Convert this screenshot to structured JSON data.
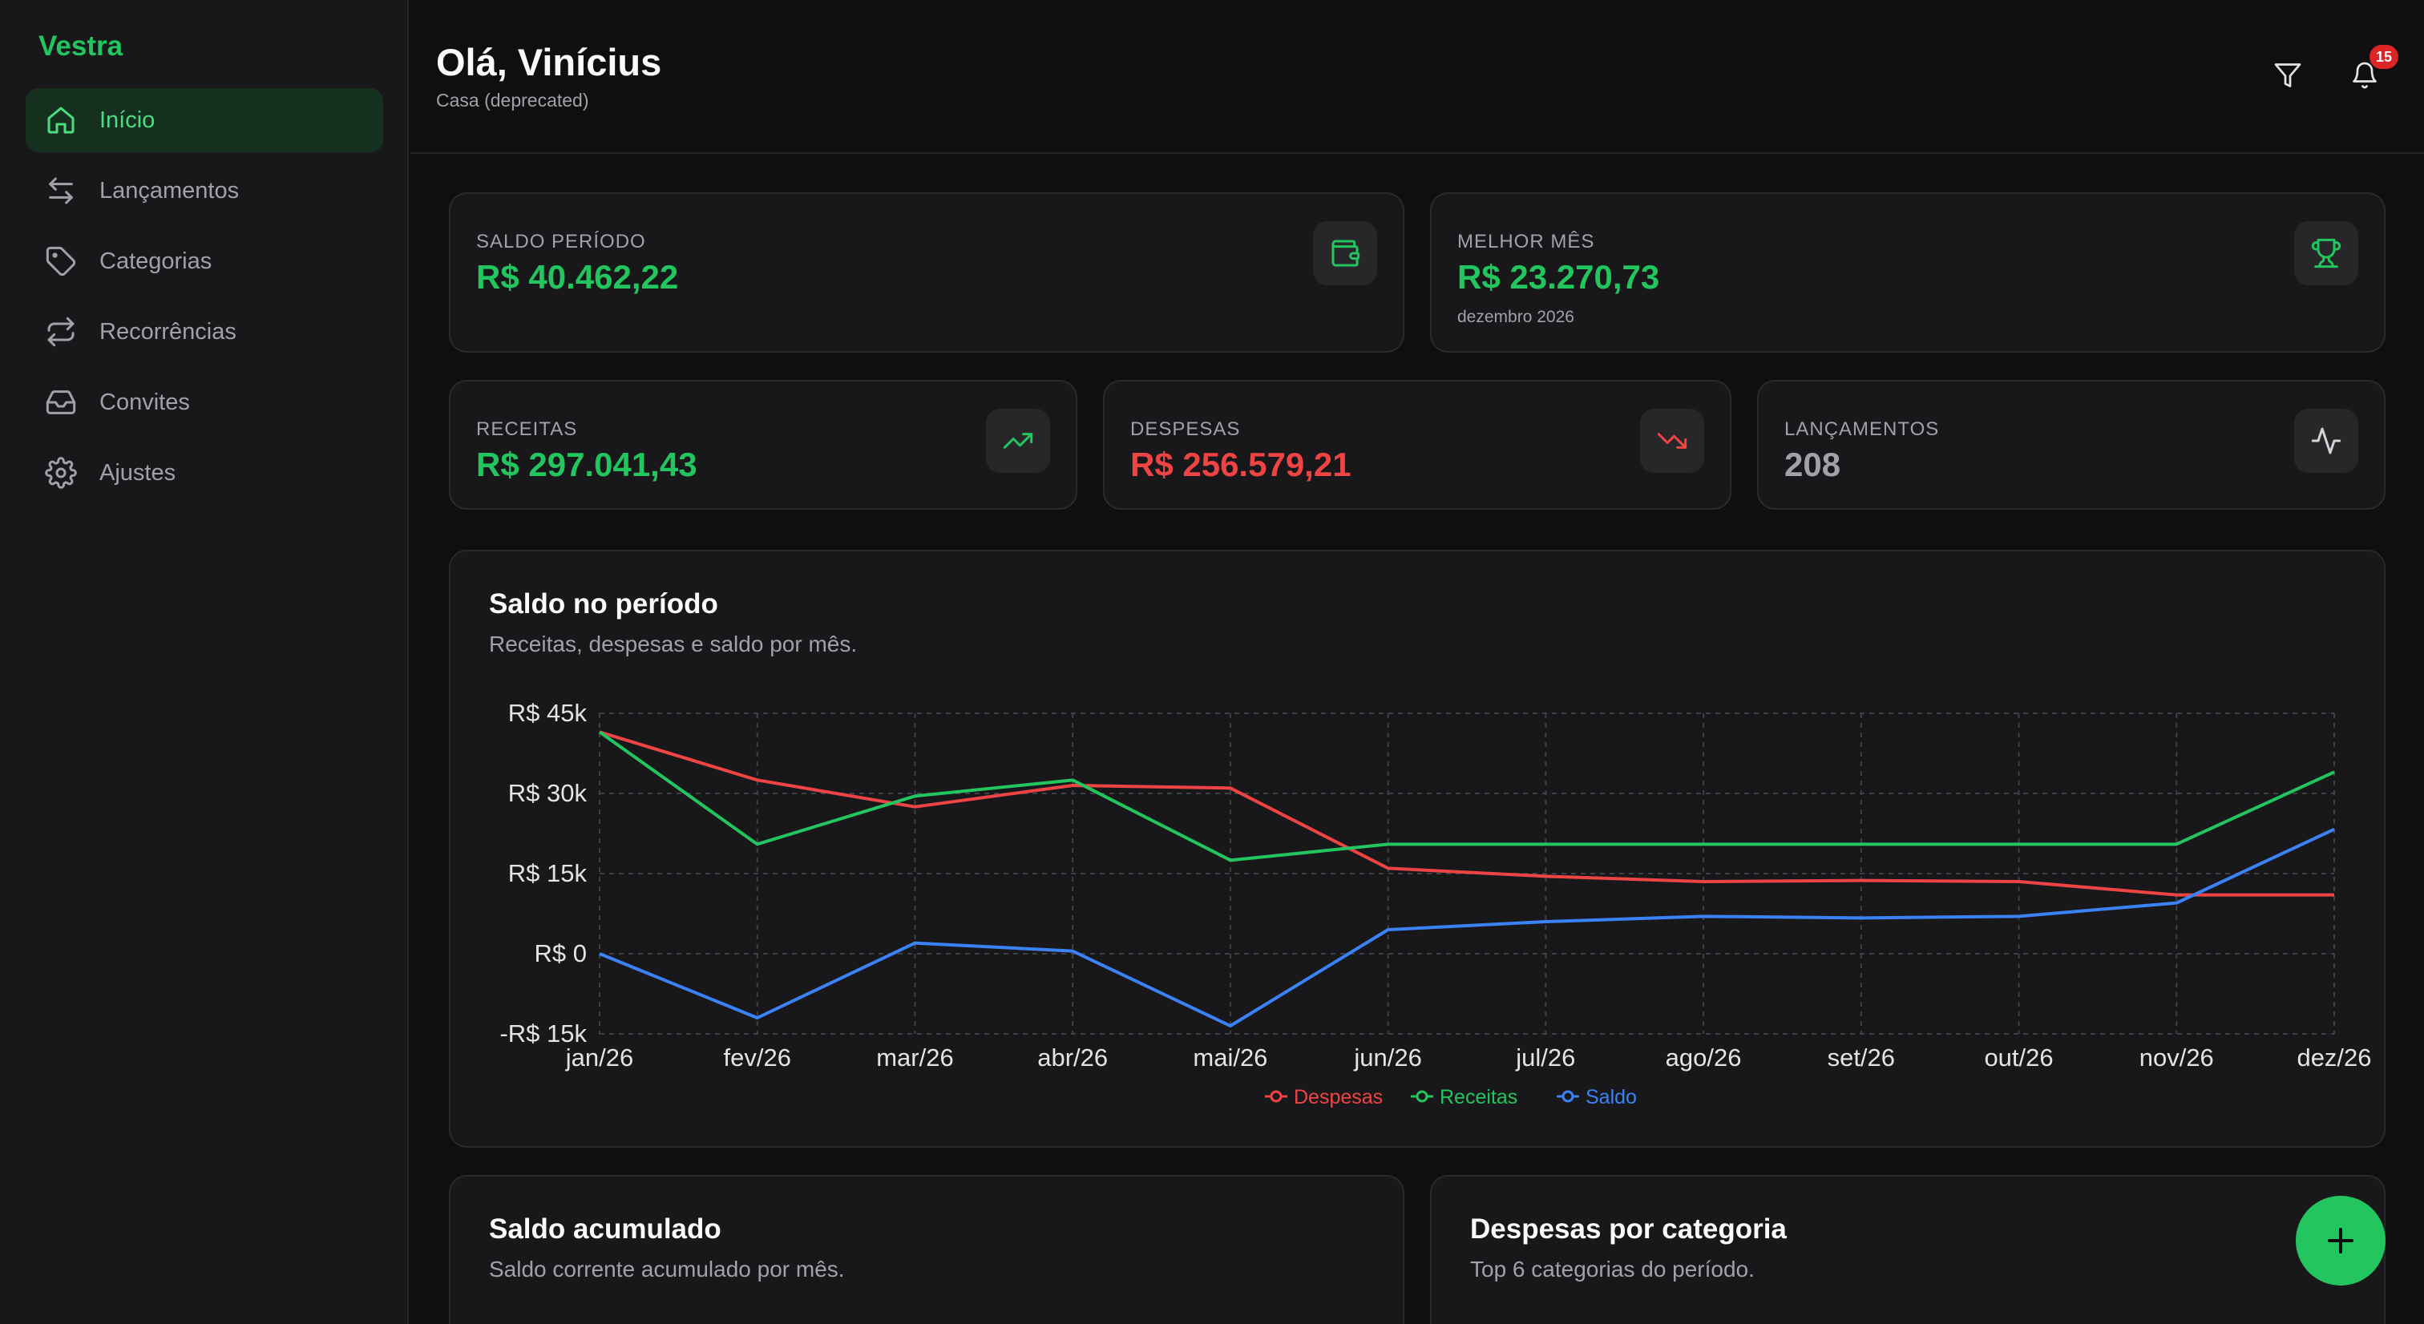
{
  "app": {
    "brand": "Vestra"
  },
  "sidebar": {
    "items": [
      {
        "label": "Início",
        "icon": "home-icon",
        "active": true
      },
      {
        "label": "Lançamentos",
        "icon": "arrows-left-right-icon"
      },
      {
        "label": "Categorias",
        "icon": "tag-icon"
      },
      {
        "label": "Recorrências",
        "icon": "repeat-icon"
      },
      {
        "label": "Convites",
        "icon": "inbox-icon"
      },
      {
        "label": "Ajustes",
        "icon": "gear-icon"
      }
    ]
  },
  "header": {
    "greeting": "Olá, Vinícius",
    "workspace": "Casa (deprecated)",
    "notifications_count": "15"
  },
  "stats": {
    "saldo": {
      "label": "SALDO PERÍODO",
      "value": "R$ 40.462,22",
      "icon": "wallet-icon"
    },
    "melhor": {
      "label": "MELHOR MÊS",
      "value": "R$ 23.270,73",
      "sub": "dezembro 2026",
      "icon": "trophy-icon"
    },
    "receitas": {
      "label": "RECEITAS",
      "value": "R$ 297.041,43",
      "icon": "trending-up-icon"
    },
    "despesas": {
      "label": "DESPESAS",
      "value": "R$ 256.579,21",
      "icon": "trending-down-icon"
    },
    "lancamentos": {
      "label": "LANÇAMENTOS",
      "value": "208",
      "icon": "activity-icon"
    }
  },
  "saldo_periodo_card": {
    "title": "Saldo no período",
    "subtitle": "Receitas, despesas e saldo por mês."
  },
  "saldo_acumulado_card": {
    "title": "Saldo acumulado",
    "subtitle": "Saldo corrente acumulado por mês."
  },
  "despesas_categoria_card": {
    "title": "Despesas por categoria",
    "subtitle": "Top 6 categorias do período."
  },
  "colors": {
    "accent": "#22c55e",
    "despesas": "#ef4444",
    "receitas": "#22c55e",
    "saldo": "#3b82f6"
  },
  "chart_data": {
    "type": "line",
    "x": [
      "jan/26",
      "fev/26",
      "mar/26",
      "abr/26",
      "mai/26",
      "jun/26",
      "jul/26",
      "ago/26",
      "set/26",
      "out/26",
      "nov/26",
      "dez/26"
    ],
    "ylim": [
      -15000,
      45000
    ],
    "yticks": [
      45000,
      30000,
      15000,
      0,
      -15000
    ],
    "ytick_labels": [
      "R$ 45k",
      "R$ 30k",
      "R$ 15k",
      "R$ 0",
      "-R$ 15k"
    ],
    "grid": true,
    "legend": "bottom-center",
    "series": [
      {
        "name": "Despesas",
        "color": "#ef4444",
        "values": [
          41500,
          32500,
          27500,
          31500,
          31000,
          16000,
          14500,
          13500,
          13700,
          13500,
          11000,
          11000
        ]
      },
      {
        "name": "Receitas",
        "color": "#22c55e",
        "values": [
          41500,
          20500,
          29500,
          32500,
          17500,
          20500,
          20500,
          20500,
          20500,
          20500,
          20500,
          34000
        ]
      },
      {
        "name": "Saldo",
        "color": "#3b82f6",
        "values": [
          0,
          -12000,
          2000,
          500,
          -13500,
          4500,
          6000,
          7000,
          6700,
          7000,
          9500,
          23300
        ]
      }
    ]
  }
}
